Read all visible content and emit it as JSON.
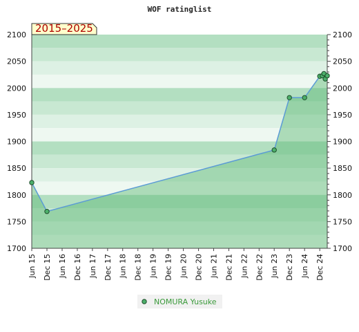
{
  "chart_data": {
    "type": "line",
    "title": "WOF ratinglist",
    "period_badge": "2015–2025",
    "ylim": [
      1700,
      2100
    ],
    "yticks": [
      1700,
      1750,
      1800,
      1850,
      1900,
      1950,
      2000,
      2050,
      2100
    ],
    "xlim": [
      "2015-06-01",
      "2025-03-01"
    ],
    "xticks": [
      {
        "date": "2015-06-01",
        "label": "Jun 15"
      },
      {
        "date": "2015-12-01",
        "label": "Dec 15"
      },
      {
        "date": "2016-06-01",
        "label": "Jun 16"
      },
      {
        "date": "2016-12-01",
        "label": "Dec 16"
      },
      {
        "date": "2017-06-01",
        "label": "Jun 17"
      },
      {
        "date": "2017-12-01",
        "label": "Dec 17"
      },
      {
        "date": "2018-06-01",
        "label": "Jun 18"
      },
      {
        "date": "2018-12-01",
        "label": "Dec 18"
      },
      {
        "date": "2019-06-01",
        "label": "Jun 19"
      },
      {
        "date": "2019-12-01",
        "label": "Dec 19"
      },
      {
        "date": "2020-06-01",
        "label": "Jun 20"
      },
      {
        "date": "2020-12-01",
        "label": "Dec 20"
      },
      {
        "date": "2021-06-01",
        "label": "Jun 21"
      },
      {
        "date": "2021-12-01",
        "label": "Dec 21"
      },
      {
        "date": "2022-06-01",
        "label": "Jun 22"
      },
      {
        "date": "2022-12-01",
        "label": "Dec 22"
      },
      {
        "date": "2023-06-01",
        "label": "Jun 23"
      },
      {
        "date": "2023-12-01",
        "label": "Dec 23"
      },
      {
        "date": "2024-06-01",
        "label": "Jun 24"
      },
      {
        "date": "2024-12-01",
        "label": "Dec 24"
      }
    ],
    "series": [
      {
        "name": "NOMURA Yusuke",
        "points": [
          {
            "x": "2015-06-01",
            "y": 1823
          },
          {
            "x": "2015-12-01",
            "y": 1769
          },
          {
            "x": "2023-06-01",
            "y": 1884
          },
          {
            "x": "2023-12-01",
            "y": 1982
          },
          {
            "x": "2024-06-01",
            "y": 1982
          },
          {
            "x": "2024-12-01",
            "y": 2022
          },
          {
            "x": "2025-01-01",
            "y": 2023
          },
          {
            "x": "2025-01-20",
            "y": 2027
          },
          {
            "x": "2025-02-05",
            "y": 2017
          },
          {
            "x": "2025-03-01",
            "y": 2023
          }
        ]
      }
    ],
    "legend_position": "bottom-center",
    "grid": "horizontal bands",
    "colors": {
      "band_dark": "#b3dfc1",
      "band_mid": "#c8e8d2",
      "band_light": "#ddf1e4",
      "band_lightest": "#eef8f1",
      "fill": "#5cb874",
      "line": "#5b9bd5",
      "marker": "#4caf6a",
      "badge_bg": "#ffffcc",
      "badge_text": "#b00000",
      "legend_text": "#3a9a3a"
    }
  }
}
